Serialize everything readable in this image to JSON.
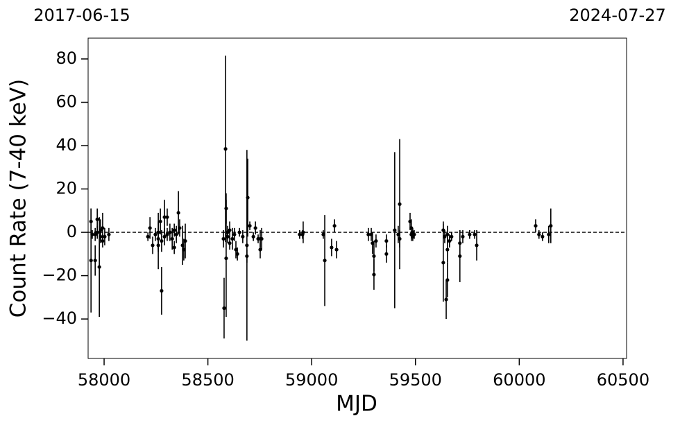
{
  "chart_data": {
    "type": "errorbar-scatter",
    "top_labels": [
      "2017-06-15",
      "2024-07-27"
    ],
    "x_label": "MJD",
    "y_label": "Count Rate (7-40 keV)",
    "xlim": [
      57923,
      60517
    ],
    "ylim": [
      -58.2,
      89.6
    ],
    "xticks": [
      58000,
      58500,
      59000,
      59500,
      60000,
      60500
    ],
    "yticks": [
      {
        "value": -40,
        "label": "−40"
      },
      {
        "value": -20,
        "label": "−20"
      },
      0,
      20,
      40,
      60,
      80
    ],
    "hline": 0,
    "color": "#000000",
    "x": [
      57937,
      57937,
      57943,
      57957,
      57957,
      57967,
      57967,
      57977,
      57983,
      57983,
      57993,
      57993,
      58003,
      58023,
      58211,
      58221,
      58234,
      58247,
      58261,
      58261,
      58261,
      58271,
      58277,
      58277,
      58291,
      58291,
      58304,
      58304,
      58317,
      58328,
      58338,
      58338,
      58348,
      58358,
      58364,
      58378,
      58384,
      58391,
      58575,
      58578,
      58585,
      58588,
      58588,
      58595,
      58595,
      58605,
      58605,
      58618,
      58628,
      58635,
      58642,
      58652,
      58668,
      58688,
      58688,
      58692,
      58702,
      58719,
      58729,
      58742,
      58752,
      58752,
      58759,
      58942,
      58956,
      58959,
      59056,
      59063,
      59096,
      59110,
      59120,
      59273,
      59287,
      59293,
      59300,
      59300,
      59310,
      59360,
      59360,
      59400,
      59417,
      59424,
      59424,
      59474,
      59480,
      59480,
      59487,
      59487,
      59494,
      59634,
      59634,
      59641,
      59648,
      59654,
      59654,
      59654,
      59664,
      59674,
      59714,
      59714,
      59728,
      59761,
      59785,
      59795,
      60079,
      60095,
      60112,
      60142,
      60152
    ],
    "values": [
      5,
      -13,
      -1,
      -1,
      -13,
      6,
      0,
      -16,
      1,
      -2,
      2,
      -4,
      -2,
      -1,
      -2,
      2,
      -6,
      -1,
      -6,
      0,
      -3,
      5,
      -27,
      -4,
      7,
      -2,
      7,
      -1,
      0,
      -3,
      -7,
      1,
      -1,
      9,
      2,
      -6,
      -8,
      -4,
      -3,
      -35,
      38.5,
      11,
      -12,
      0,
      -2,
      -5,
      1,
      -3,
      -1,
      -8,
      -10,
      0,
      -2,
      -6,
      -11,
      16,
      3,
      -2,
      2,
      -3,
      -8,
      -3,
      -3,
      -1,
      -1,
      0,
      -1,
      -13,
      -7,
      3,
      -8,
      -1,
      -1,
      -5,
      -11,
      -19.5,
      -4,
      -4,
      -10,
      1,
      -1,
      -3,
      13,
      5,
      2,
      -1,
      0,
      -2,
      -1,
      1,
      -14,
      -2,
      -31,
      -1,
      -8,
      -22,
      -4,
      -2,
      -5,
      -11,
      -2,
      -1,
      -1,
      -6,
      3,
      -1,
      -2,
      -1,
      3
    ],
    "errors": [
      6,
      24,
      2,
      3,
      7,
      5,
      3,
      23,
      5,
      3,
      7,
      3,
      4,
      3,
      2,
      5,
      4,
      3,
      11,
      9,
      5,
      6,
      11,
      5,
      8,
      4,
      4,
      3,
      4,
      5,
      3,
      3,
      4,
      10,
      4,
      9,
      5,
      8,
      4,
      14,
      43,
      7,
      27,
      3,
      3,
      3,
      4,
      5,
      3,
      4,
      3,
      2,
      3,
      44,
      3,
      18,
      2,
      2,
      3,
      2,
      4,
      4,
      5,
      2,
      2,
      5,
      2,
      21,
      4,
      3,
      4,
      3,
      3,
      5,
      7,
      7,
      3,
      3,
      4,
      36,
      4,
      4,
      30,
      4,
      4,
      3,
      2,
      2,
      2,
      4,
      18,
      3,
      9,
      4,
      6,
      8,
      3,
      2,
      6,
      12,
      3,
      2,
      2,
      7,
      3,
      2,
      2,
      4,
      8
    ]
  }
}
